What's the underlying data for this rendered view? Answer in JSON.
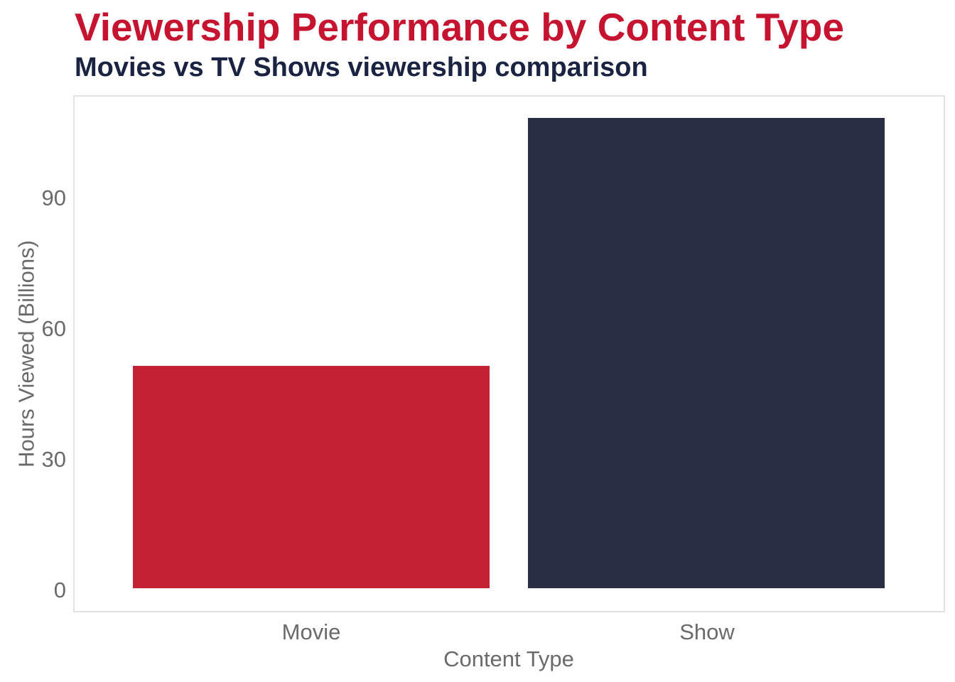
{
  "header": {
    "title": "Viewership Performance by Content Type",
    "subtitle": "Movies vs TV Shows viewership comparison",
    "title_color": "#C6132F",
    "subtitle_color": "#1A2342"
  },
  "chart_data": {
    "type": "bar",
    "title": "Viewership Performance by Content Type",
    "subtitle": "Movies vs TV Shows viewership comparison",
    "categories": [
      "Movie",
      "Show"
    ],
    "values": [
      51,
      108
    ],
    "bar_colors": [
      "#C42134",
      "#2A2E45"
    ],
    "xlabel": "Content Type",
    "ylabel": "Hours Viewed (Billions)",
    "yticks": [
      0,
      30,
      60,
      90
    ],
    "ytick_labels": [
      "0",
      "30",
      "60",
      "90"
    ],
    "ylim": [
      -5.2,
      113.5
    ],
    "grid": false,
    "legend": false,
    "axis_text_color": "#6A6A6A",
    "panel_border_color": "#E2E2E2",
    "background_color": "#FFFFFF"
  }
}
